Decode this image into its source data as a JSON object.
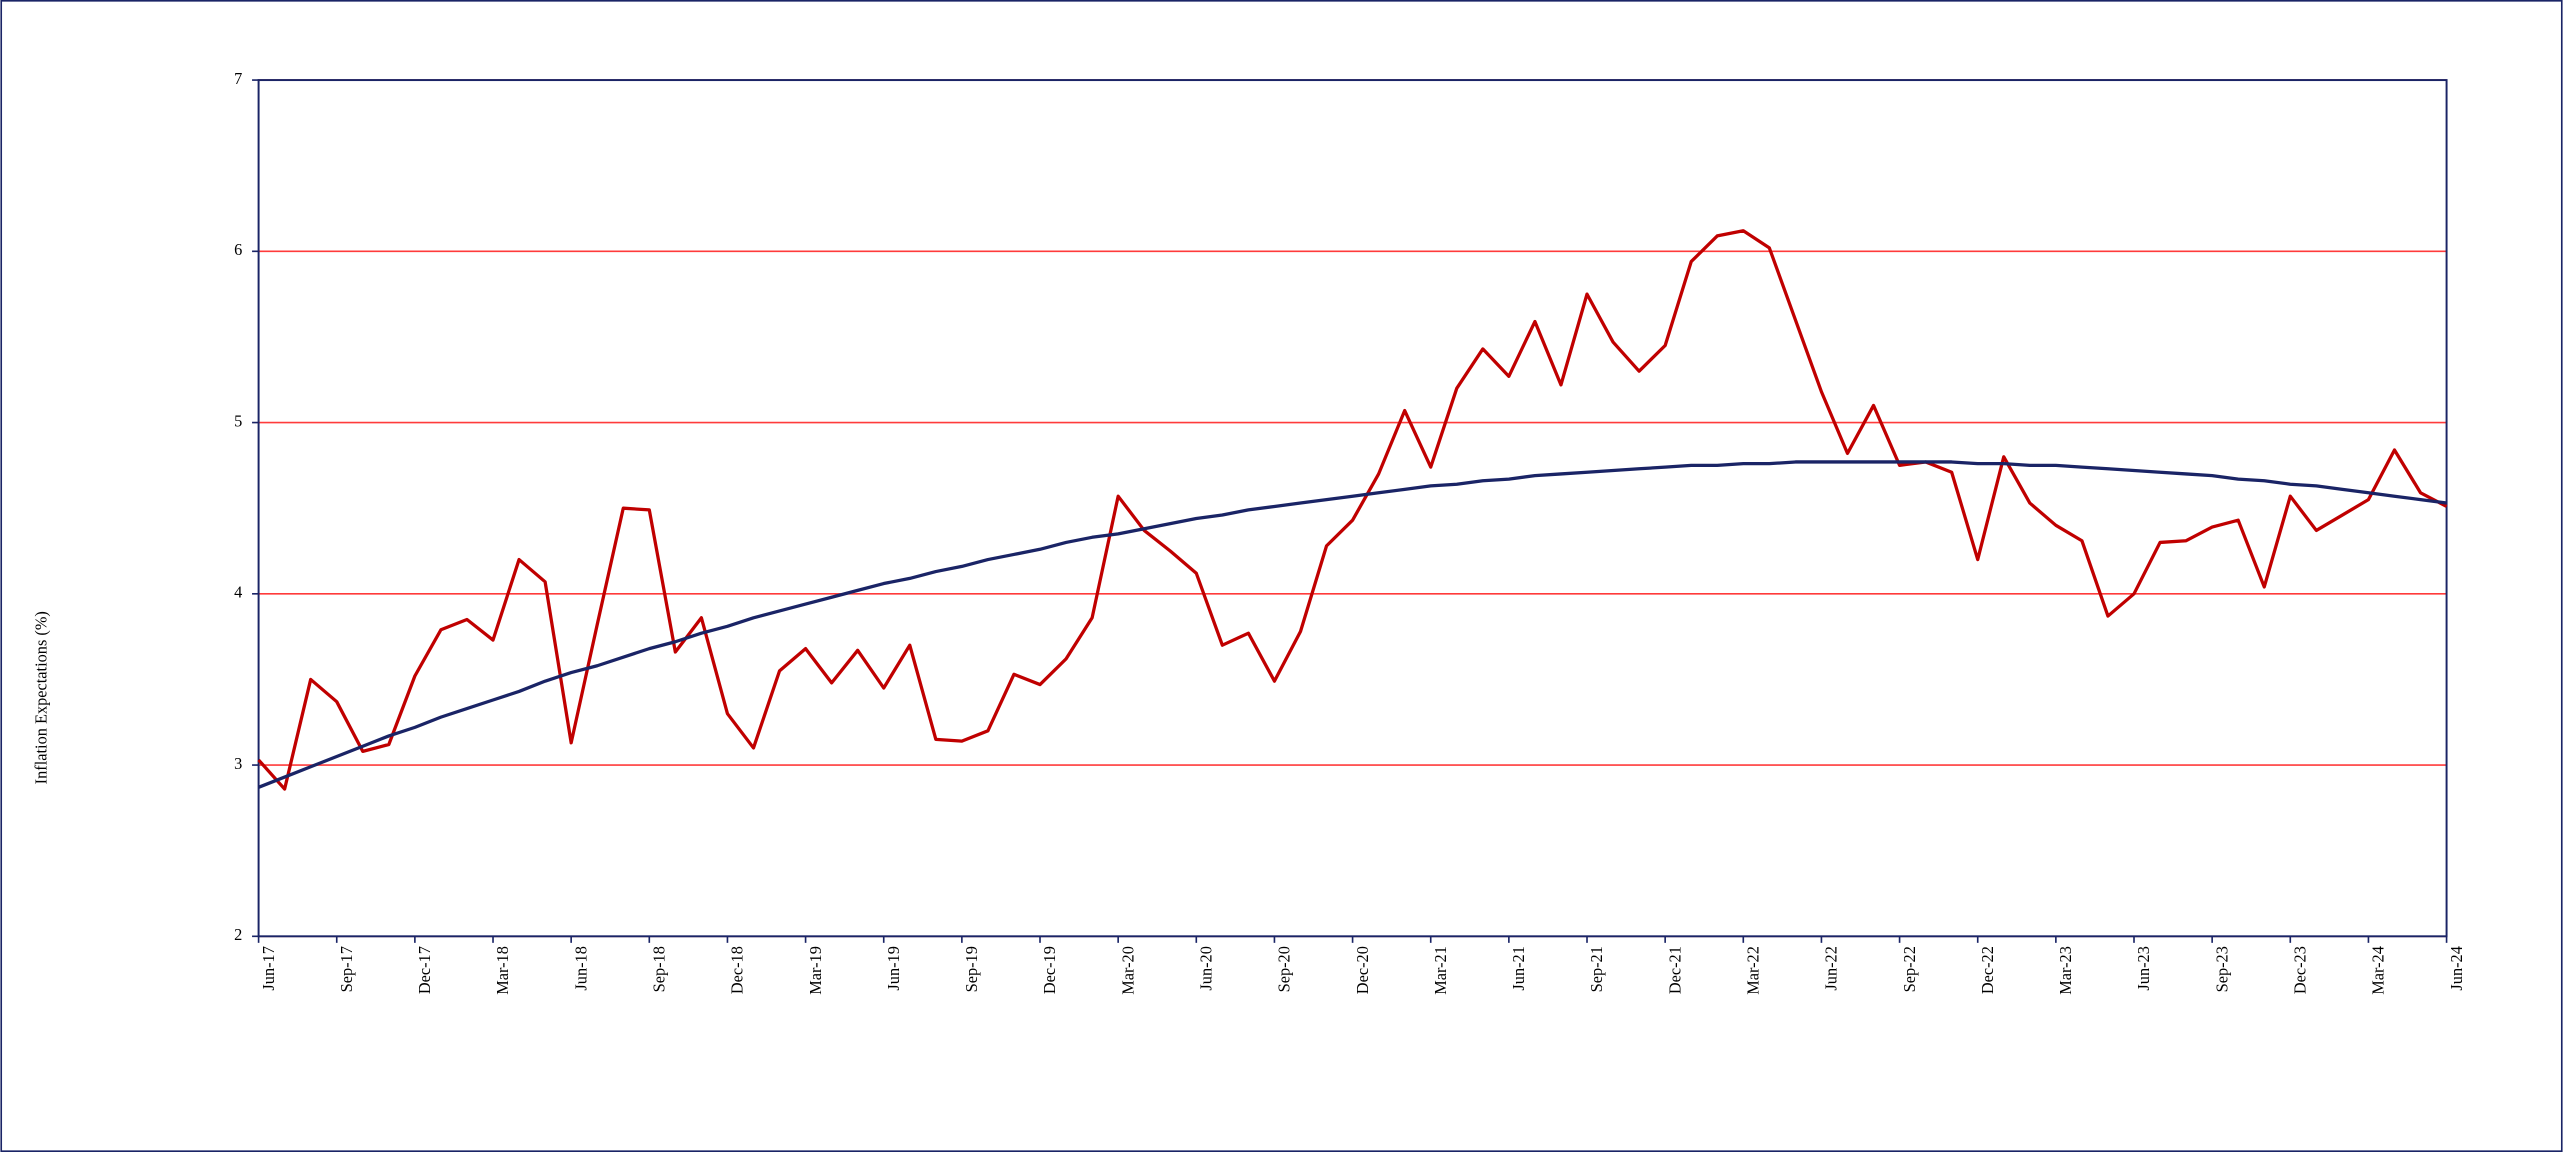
{
  "chart_data": {
    "type": "line",
    "y_label": "Inflation  Expectations (%)",
    "categories": [
      "Jun-17",
      null,
      null,
      "Sep-17",
      null,
      null,
      "Dec-17",
      null,
      null,
      "Mar-18",
      null,
      null,
      "Jun-18",
      null,
      null,
      "Sep-18",
      null,
      null,
      "Dec-18",
      null,
      null,
      "Mar-19",
      null,
      null,
      "Jun-19",
      null,
      null,
      "Sep-19",
      null,
      null,
      "Dec-19",
      null,
      null,
      "Mar-20",
      null,
      null,
      "Jun-20",
      null,
      null,
      "Sep-20",
      null,
      null,
      "Dec-20",
      null,
      null,
      "Mar-21",
      null,
      null,
      "Jun-21",
      null,
      null,
      "Sep-21",
      null,
      null,
      "Dec-21",
      null,
      null,
      "Mar-22",
      null,
      null,
      "Jun-22",
      null,
      null,
      "Sep-22",
      null,
      null,
      "Dec-22",
      null,
      null,
      "Mar-23",
      null,
      null,
      "Jun-23",
      null,
      null,
      "Sep-23",
      null,
      null,
      "Dec-23",
      null,
      null,
      "Mar-24",
      null,
      null,
      "Jun-24"
    ],
    "series": [
      {
        "color": "#c00000",
        "values": [
          3.03,
          2.86,
          3.5,
          3.37,
          3.08,
          3.12,
          3.52,
          3.79,
          3.85,
          3.73,
          4.2,
          4.07,
          3.13,
          3.82,
          4.5,
          4.49,
          3.66,
          3.86,
          3.3,
          3.1,
          3.55,
          3.68,
          3.48,
          3.67,
          3.45,
          3.7,
          3.15,
          3.14,
          3.2,
          3.53,
          3.47,
          3.62,
          3.86,
          4.57,
          4.37,
          4.25,
          4.12,
          3.7,
          3.77,
          3.49,
          3.78,
          4.28,
          4.43,
          4.7,
          5.07,
          4.74,
          5.2,
          5.43,
          5.27,
          5.59,
          5.22,
          5.75,
          5.47,
          5.3,
          5.45,
          5.94,
          6.09,
          6.12,
          6.02,
          5.6,
          5.18,
          4.82,
          5.1,
          4.75,
          4.77,
          4.71,
          4.2,
          4.8,
          4.53,
          4.4,
          4.31,
          3.87,
          4.0,
          4.3,
          4.31,
          4.39,
          4.43,
          4.04,
          4.57,
          4.37,
          4.46,
          4.55,
          4.84,
          4.59,
          4.51
        ]
      },
      {
        "color": "#1a2466",
        "values": [
          2.87,
          2.93,
          2.99,
          3.05,
          3.11,
          3.17,
          3.22,
          3.28,
          3.33,
          3.38,
          3.43,
          3.49,
          3.54,
          3.58,
          3.63,
          3.68,
          3.72,
          3.77,
          3.81,
          3.86,
          3.9,
          3.94,
          3.98,
          4.02,
          4.06,
          4.09,
          4.13,
          4.16,
          4.2,
          4.23,
          4.26,
          4.3,
          4.33,
          4.35,
          4.38,
          4.41,
          4.44,
          4.46,
          4.49,
          4.51,
          4.53,
          4.55,
          4.57,
          4.59,
          4.61,
          4.63,
          4.64,
          4.66,
          4.67,
          4.69,
          4.7,
          4.71,
          4.72,
          4.73,
          4.74,
          4.75,
          4.75,
          4.76,
          4.76,
          4.77,
          4.77,
          4.77,
          4.77,
          4.77,
          4.77,
          4.77,
          4.76,
          4.76,
          4.75,
          4.75,
          4.74,
          4.73,
          4.72,
          4.71,
          4.7,
          4.69,
          4.67,
          4.66,
          4.64,
          4.63,
          4.61,
          4.59,
          4.57,
          4.55,
          4.53
        ]
      }
    ],
    "ylim": [
      2,
      7
    ],
    "yticks": [
      2,
      3,
      4,
      5,
      6,
      7
    ],
    "grid": true,
    "grid_color": "#ff3b3b"
  }
}
